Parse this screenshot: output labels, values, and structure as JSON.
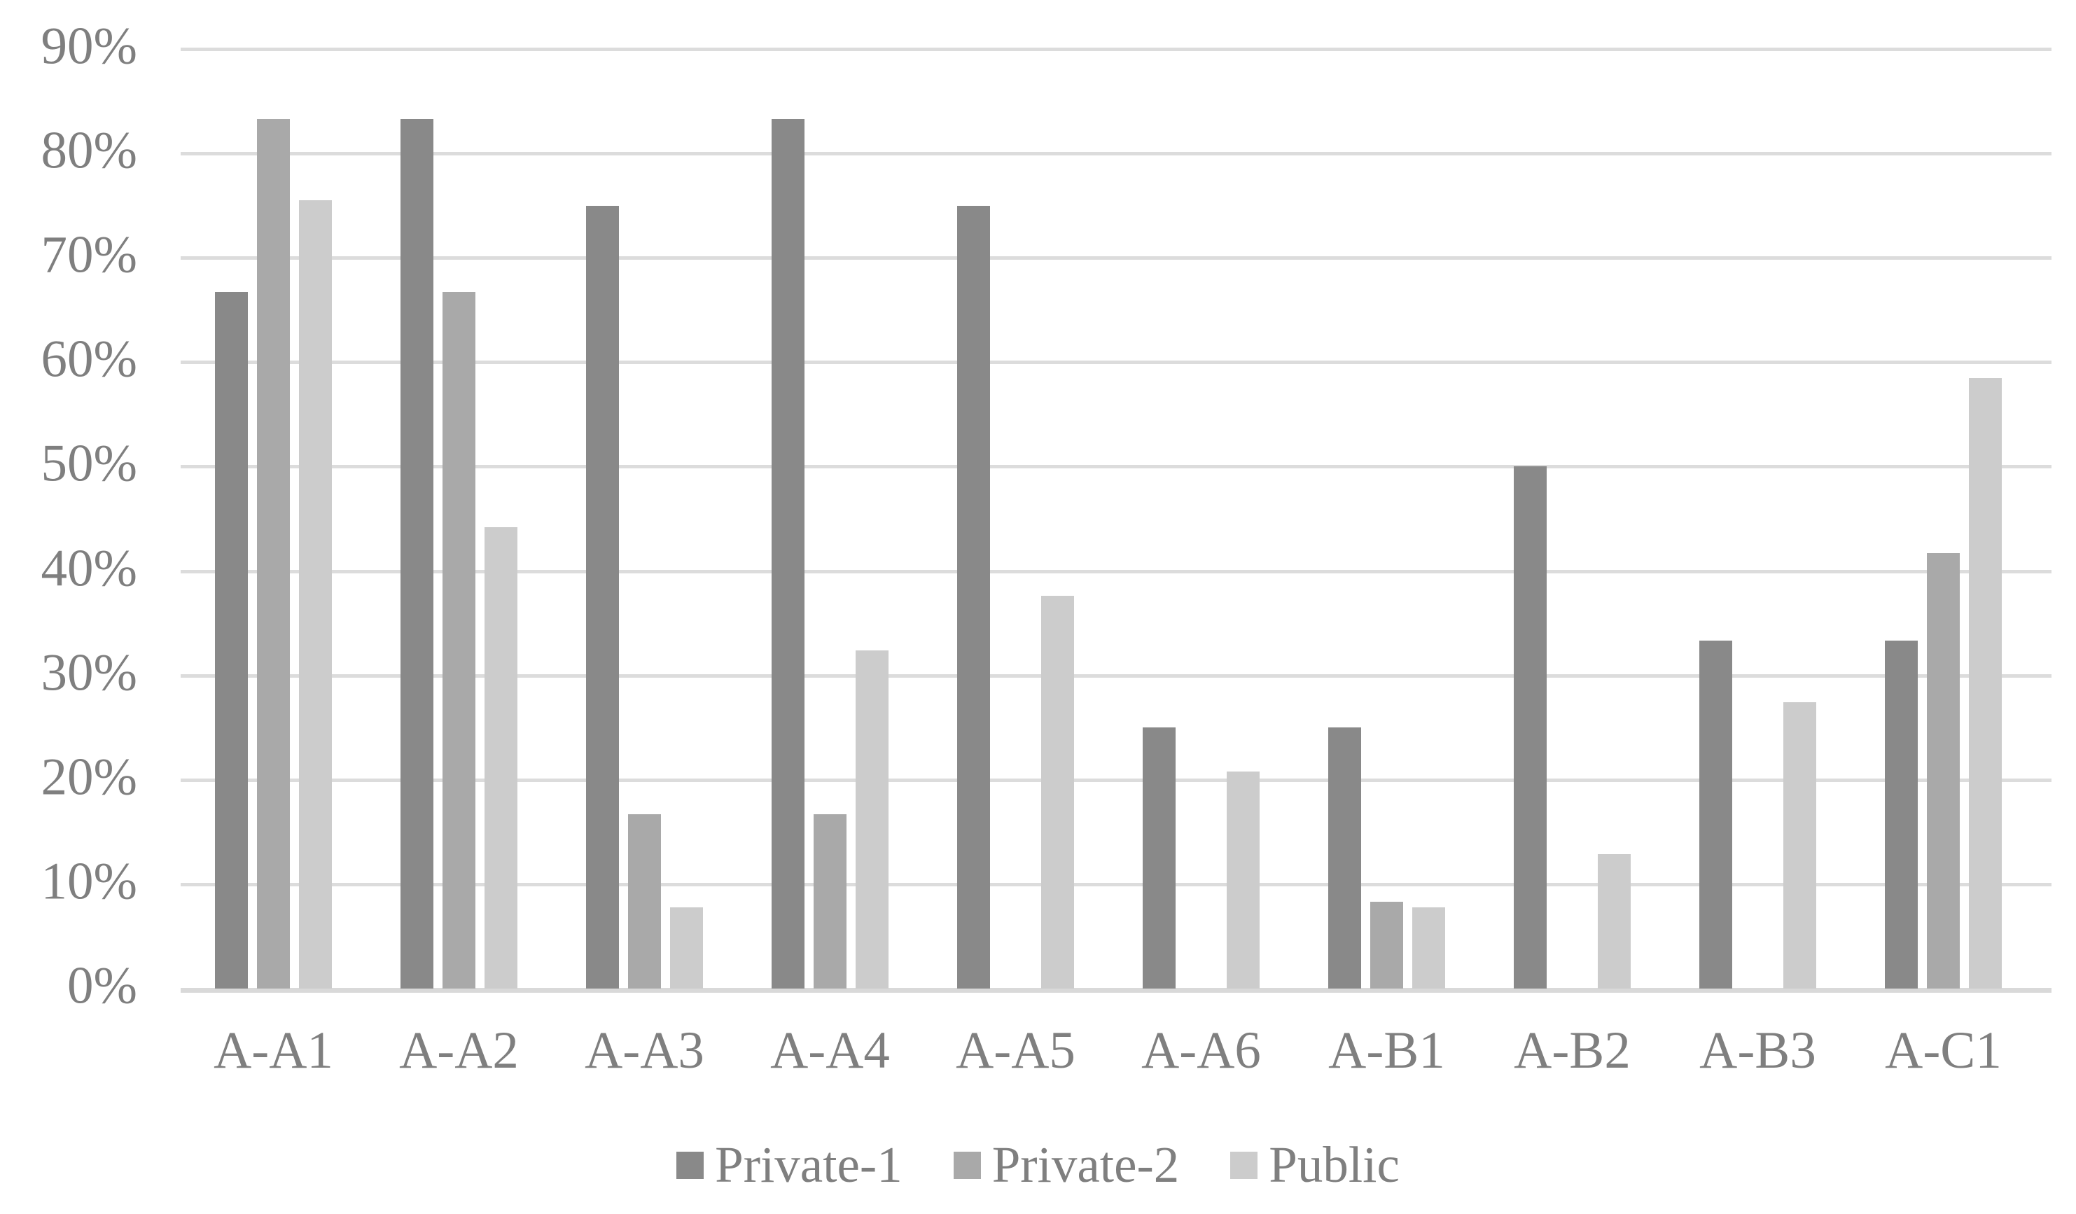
{
  "chart_data": {
    "type": "bar",
    "title": "",
    "xlabel": "",
    "ylabel": "",
    "categories": [
      "A-A1",
      "A-A2",
      "A-A3",
      "A-A4",
      "A-A5",
      "A-A6",
      "A-B1",
      "A-B2",
      "A-B3",
      "A-C1"
    ],
    "series": [
      {
        "name": "Private-1",
        "color": "#898989",
        "values": [
          66.7,
          83.3,
          75.0,
          83.3,
          75.0,
          25.0,
          25.0,
          50.0,
          33.3,
          33.3
        ]
      },
      {
        "name": "Private-2",
        "color": "#a9a9a9",
        "values": [
          83.3,
          66.7,
          16.7,
          16.7,
          0,
          0,
          8.3,
          0,
          0,
          41.7
        ]
      },
      {
        "name": "Public",
        "color": "#cccccc",
        "values": [
          75.5,
          44.2,
          7.8,
          32.4,
          37.6,
          20.8,
          7.8,
          12.9,
          27.4,
          58.5
        ]
      }
    ],
    "ylim": [
      0,
      90
    ],
    "yticks": [
      0,
      10,
      20,
      30,
      40,
      50,
      60,
      70,
      80,
      90
    ],
    "ytick_labels": [
      "0%",
      "10%",
      "20%",
      "30%",
      "40%",
      "50%",
      "60%",
      "70%",
      "80%",
      "90%"
    ],
    "grid": "horizontal",
    "legend_position": "bottom",
    "legend_entries": [
      "Private-1",
      "Private-2",
      "Public"
    ]
  },
  "colors": {
    "background": "#ffffff",
    "gridline": "#dcdcdc",
    "axis_text": "#7f7f7f",
    "series_private1": "#898989",
    "series_private2": "#a9a9a9",
    "series_public": "#cccccc"
  }
}
